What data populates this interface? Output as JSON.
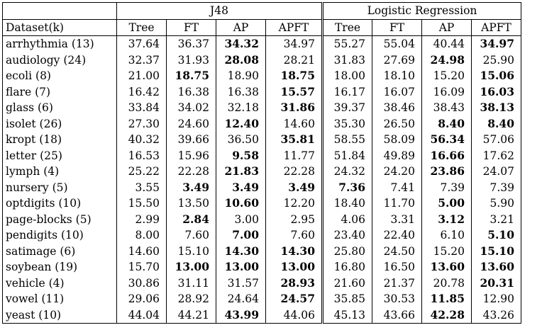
{
  "table": {
    "group_headers": [
      "J48",
      "Logistic Regression"
    ],
    "columns": [
      "Dataset(k)",
      "Tree",
      "FT",
      "AP",
      "APFT",
      "Tree",
      "FT",
      "AP",
      "APFT"
    ],
    "rows": [
      {
        "name": "arrhythmia (13)",
        "values": [
          "37.64",
          "36.37",
          "34.32",
          "34.97",
          "55.27",
          "55.04",
          "40.44",
          "34.97"
        ],
        "bold": [
          false,
          false,
          true,
          false,
          false,
          false,
          false,
          true
        ]
      },
      {
        "name": "audiology (24)",
        "values": [
          "32.37",
          "31.93",
          "28.08",
          "28.21",
          "31.83",
          "27.69",
          "24.98",
          "25.90"
        ],
        "bold": [
          false,
          false,
          true,
          false,
          false,
          false,
          true,
          false
        ]
      },
      {
        "name": "ecoli (8)",
        "values": [
          "21.00",
          "18.75",
          "18.90",
          "18.75",
          "18.00",
          "18.10",
          "15.20",
          "15.06"
        ],
        "bold": [
          false,
          true,
          false,
          true,
          false,
          false,
          false,
          true
        ]
      },
      {
        "name": "flare (7)",
        "values": [
          "16.42",
          "16.38",
          "16.38",
          "15.57",
          "16.17",
          "16.07",
          "16.09",
          "16.03"
        ],
        "bold": [
          false,
          false,
          false,
          true,
          false,
          false,
          false,
          true
        ]
      },
      {
        "name": "glass (6)",
        "values": [
          "33.84",
          "34.02",
          "32.18",
          "31.86",
          "39.37",
          "38.46",
          "38.43",
          "38.13"
        ],
        "bold": [
          false,
          false,
          false,
          true,
          false,
          false,
          false,
          true
        ]
      },
      {
        "name": "isolet (26)",
        "values": [
          "27.30",
          "24.60",
          "12.40",
          "14.60",
          "35.30",
          "26.50",
          "8.40",
          "8.40"
        ],
        "bold": [
          false,
          false,
          true,
          false,
          false,
          false,
          true,
          true
        ]
      },
      {
        "name": "kropt (18)",
        "values": [
          "40.32",
          "39.66",
          "36.50",
          "35.81",
          "58.55",
          "58.09",
          "56.34",
          "57.06"
        ],
        "bold": [
          false,
          false,
          false,
          true,
          false,
          false,
          true,
          false
        ]
      },
      {
        "name": "letter (25)",
        "values": [
          "16.53",
          "15.96",
          "9.58",
          "11.77",
          "51.84",
          "49.89",
          "16.66",
          "17.62"
        ],
        "bold": [
          false,
          false,
          true,
          false,
          false,
          false,
          true,
          false
        ]
      },
      {
        "name": "lymph (4)",
        "values": [
          "25.22",
          "22.28",
          "21.83",
          "22.28",
          "24.32",
          "24.20",
          "23.86",
          "24.07"
        ],
        "bold": [
          false,
          false,
          true,
          false,
          false,
          false,
          true,
          false
        ]
      },
      {
        "name": "nursery (5)",
        "values": [
          "3.55",
          "3.49",
          "3.49",
          "3.49",
          "7.36",
          "7.41",
          "7.39",
          "7.39"
        ],
        "bold": [
          false,
          true,
          true,
          true,
          true,
          false,
          false,
          false
        ]
      },
      {
        "name": "optdigits (10)",
        "values": [
          "15.50",
          "13.50",
          "10.60",
          "12.20",
          "18.40",
          "11.70",
          "5.00",
          "5.90"
        ],
        "bold": [
          false,
          false,
          true,
          false,
          false,
          false,
          true,
          false
        ]
      },
      {
        "name": "page-blocks (5)",
        "values": [
          "2.99",
          "2.84",
          "3.00",
          "2.95",
          "4.06",
          "3.31",
          "3.12",
          "3.21"
        ],
        "bold": [
          false,
          true,
          false,
          false,
          false,
          false,
          true,
          false
        ]
      },
      {
        "name": "pendigits (10)",
        "values": [
          "8.00",
          "7.60",
          "7.00",
          "7.60",
          "23.40",
          "22.40",
          "6.10",
          "5.10"
        ],
        "bold": [
          false,
          false,
          true,
          false,
          false,
          false,
          false,
          true
        ]
      },
      {
        "name": "satimage (6)",
        "values": [
          "14.60",
          "15.10",
          "14.30",
          "14.30",
          "25.80",
          "24.50",
          "15.20",
          "15.10"
        ],
        "bold": [
          false,
          false,
          true,
          true,
          false,
          false,
          false,
          true
        ]
      },
      {
        "name": "soybean (19)",
        "values": [
          "15.70",
          "13.00",
          "13.00",
          "13.00",
          "16.80",
          "16.50",
          "13.60",
          "13.60"
        ],
        "bold": [
          false,
          true,
          true,
          true,
          false,
          false,
          true,
          true
        ]
      },
      {
        "name": "vehicle (4)",
        "values": [
          "30.86",
          "31.11",
          "31.57",
          "28.93",
          "21.60",
          "21.37",
          "20.78",
          "20.31"
        ],
        "bold": [
          false,
          false,
          false,
          true,
          false,
          false,
          false,
          true
        ]
      },
      {
        "name": "vowel (11)",
        "values": [
          "29.06",
          "28.92",
          "24.64",
          "24.57",
          "35.85",
          "30.53",
          "11.85",
          "12.90"
        ],
        "bold": [
          false,
          false,
          false,
          true,
          false,
          false,
          true,
          false
        ]
      },
      {
        "name": "yeast (10)",
        "values": [
          "44.04",
          "44.21",
          "43.99",
          "44.06",
          "45.13",
          "43.66",
          "42.28",
          "43.26"
        ],
        "bold": [
          false,
          false,
          true,
          false,
          false,
          false,
          true,
          false
        ]
      }
    ]
  }
}
